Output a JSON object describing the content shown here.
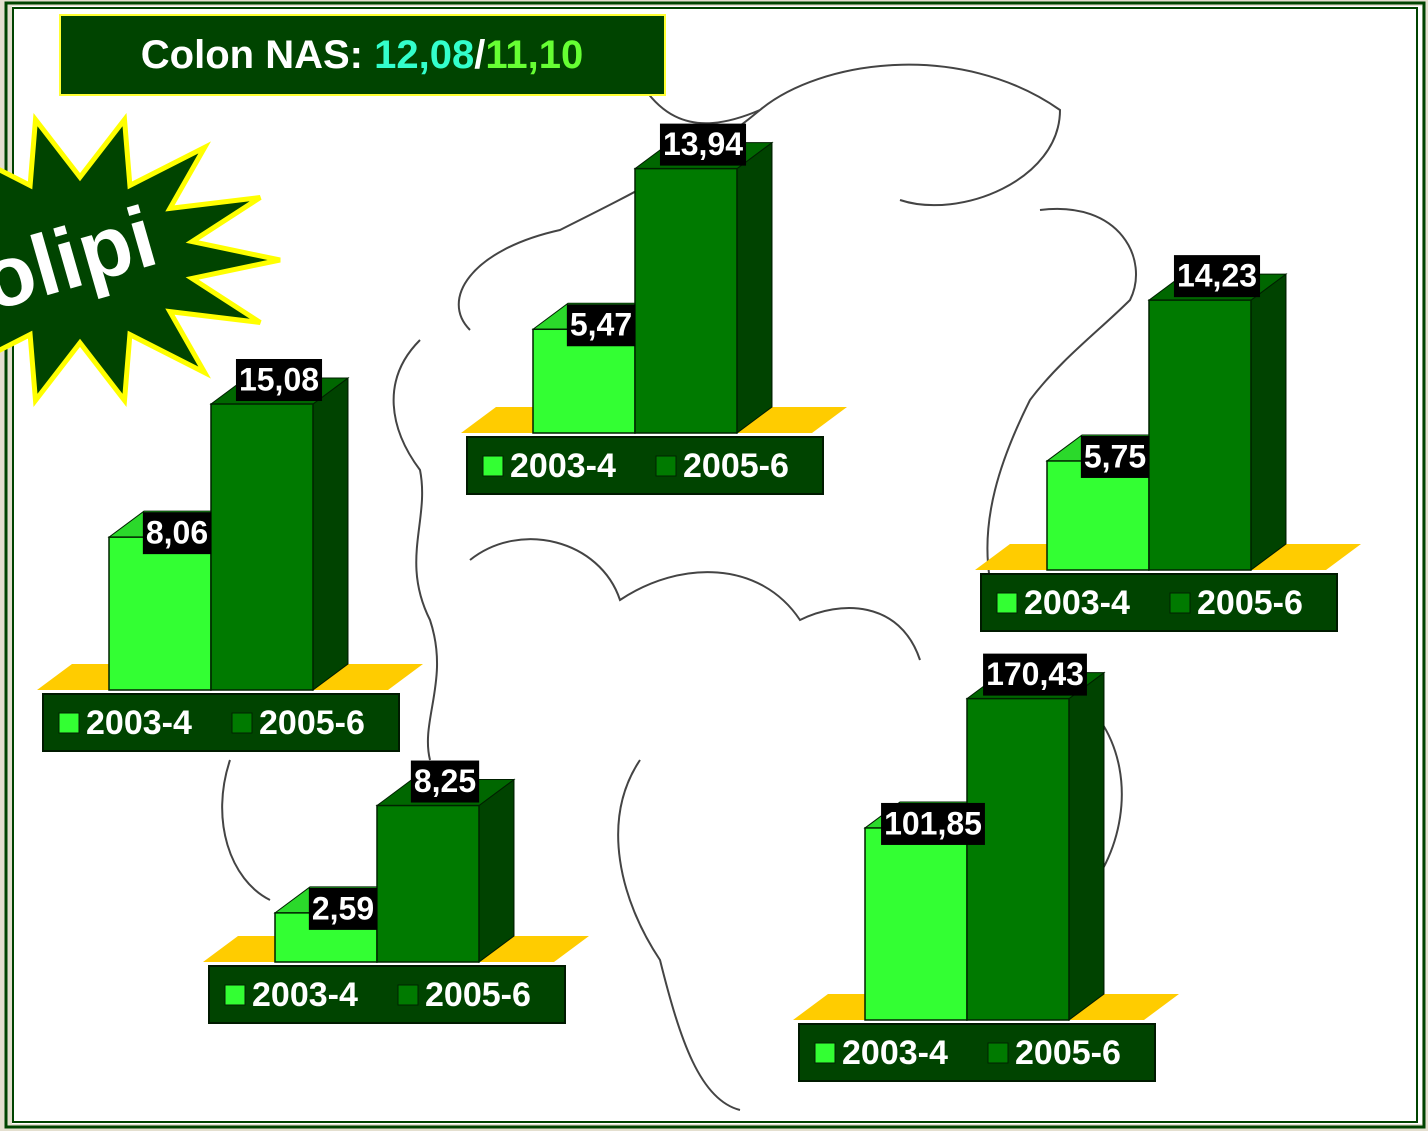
{
  "title": [
    "Colon NAS: ",
    "12,08",
    "/",
    "11,10"
  ],
  "banner": "olipi",
  "chart_data": [
    {
      "type": "bar",
      "ylim": [
        0,
        17.4
      ],
      "series": [
        {
          "name": "2003-4",
          "color": "#33ff33",
          "values": [
            5.47
          ],
          "value_labels": [
            "5,47"
          ]
        },
        {
          "name": "2005-6",
          "color": "#007a00",
          "values": [
            13.94
          ],
          "value_labels": [
            "13,94"
          ]
        }
      ]
    },
    {
      "type": "bar",
      "ylim": [
        0,
        17.4
      ],
      "series": [
        {
          "name": "2003-4",
          "color": "#33ff33",
          "values": [
            8.06
          ],
          "value_labels": [
            "8,06"
          ]
        },
        {
          "name": "2005-6",
          "color": "#007a00",
          "values": [
            15.08
          ],
          "value_labels": [
            "15,08"
          ]
        }
      ]
    },
    {
      "type": "bar",
      "ylim": [
        0,
        17.4
      ],
      "series": [
        {
          "name": "2003-4",
          "color": "#33ff33",
          "values": [
            5.75
          ],
          "value_labels": [
            "5,75"
          ]
        },
        {
          "name": "2005-6",
          "color": "#007a00",
          "values": [
            14.23
          ],
          "value_labels": [
            "14,23"
          ]
        }
      ]
    },
    {
      "type": "bar",
      "ylim": [
        0,
        17.4
      ],
      "series": [
        {
          "name": "2003-4",
          "color": "#33ff33",
          "values": [
            2.59
          ],
          "value_labels": [
            "2,59"
          ]
        },
        {
          "name": "2005-6",
          "color": "#007a00",
          "values": [
            8.25
          ],
          "value_labels": [
            "8,25"
          ]
        }
      ]
    },
    {
      "type": "bar",
      "ylim": [
        0,
        175
      ],
      "series": [
        {
          "name": "2003-4",
          "color": "#33ff33",
          "values": [
            101.85
          ],
          "value_labels": [
            "101,85"
          ]
        },
        {
          "name": "2005-6",
          "color": "#007a00",
          "values": [
            170.43
          ],
          "value_labels": [
            "170,43"
          ]
        }
      ]
    }
  ]
}
